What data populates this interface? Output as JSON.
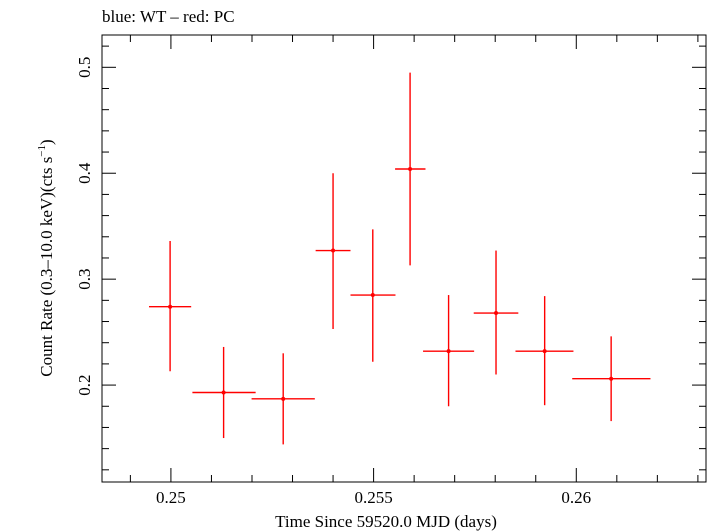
{
  "chart_data": {
    "type": "scatter",
    "title": "blue: WT – red: PC",
    "xlabel": "Time Since 59520.0 MJD (days)",
    "ylabel_main": "Count Rate (0.3–10.0 keV)(cts s",
    "ylabel_sup": "−1",
    "ylabel_close": ")",
    "xlim": [
      0.2483,
      0.2632
    ],
    "ylim": [
      0.1085,
      0.5305
    ],
    "x_ticks": [
      {
        "value": 0.25,
        "label": "0.25"
      },
      {
        "value": 0.255,
        "label": "0.255"
      },
      {
        "value": 0.26,
        "label": "0.26"
      }
    ],
    "y_ticks": [
      {
        "value": 0.2,
        "label": "0.2"
      },
      {
        "value": 0.3,
        "label": "0.3"
      },
      {
        "value": 0.4,
        "label": "0.4"
      },
      {
        "value": 0.5,
        "label": "0.5"
      }
    ],
    "x_minor_step": 0.001,
    "y_minor_step": 0.02,
    "color": "#ff0000",
    "series": [
      {
        "points": [
          {
            "x": 0.24998,
            "xlo": 0.24946,
            "xhi": 0.2505,
            "y": 0.274,
            "ylo": 0.213,
            "yhi": 0.336
          },
          {
            "x": 0.2513,
            "xlo": 0.25053,
            "xhi": 0.25209,
            "y": 0.193,
            "ylo": 0.15,
            "yhi": 0.236
          },
          {
            "x": 0.25277,
            "xlo": 0.25199,
            "xhi": 0.25355,
            "y": 0.187,
            "ylo": 0.144,
            "yhi": 0.23
          },
          {
            "x": 0.254,
            "xlo": 0.25357,
            "xhi": 0.25443,
            "y": 0.327,
            "ylo": 0.253,
            "yhi": 0.4
          },
          {
            "x": 0.25498,
            "xlo": 0.25443,
            "xhi": 0.25554,
            "y": 0.285,
            "ylo": 0.222,
            "yhi": 0.347
          },
          {
            "x": 0.2559,
            "xlo": 0.25553,
            "xhi": 0.25628,
            "y": 0.404,
            "ylo": 0.313,
            "yhi": 0.495
          },
          {
            "x": 0.25685,
            "xlo": 0.25622,
            "xhi": 0.25748,
            "y": 0.232,
            "ylo": 0.18,
            "yhi": 0.285
          },
          {
            "x": 0.25802,
            "xlo": 0.25747,
            "xhi": 0.25857,
            "y": 0.268,
            "ylo": 0.21,
            "yhi": 0.327
          },
          {
            "x": 0.25922,
            "xlo": 0.2585,
            "xhi": 0.25993,
            "y": 0.232,
            "ylo": 0.181,
            "yhi": 0.284
          },
          {
            "x": 0.26086,
            "xlo": 0.2599,
            "xhi": 0.26183,
            "y": 0.206,
            "ylo": 0.166,
            "yhi": 0.246
          }
        ]
      }
    ]
  }
}
